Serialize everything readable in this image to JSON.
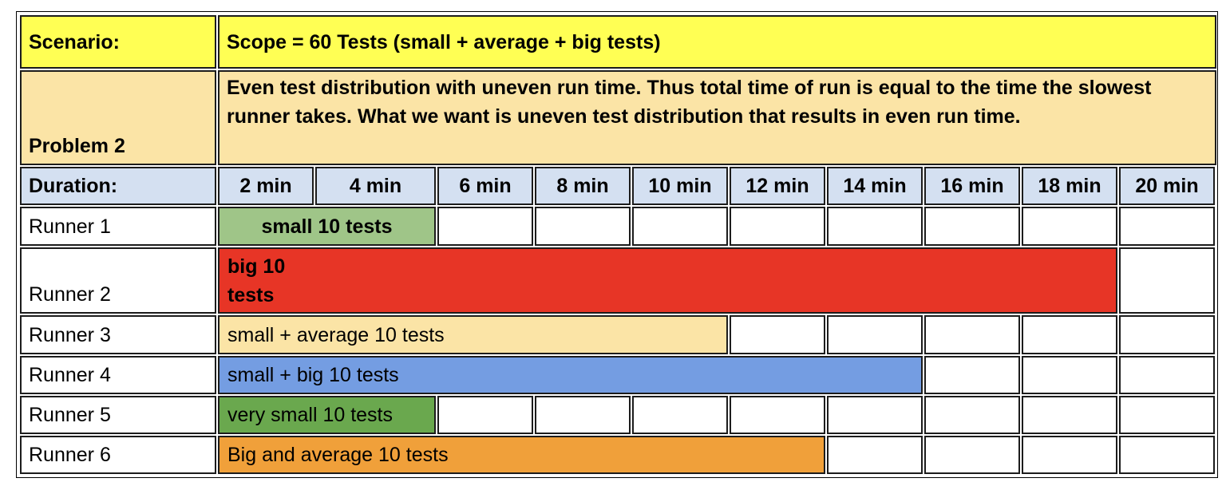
{
  "header": {
    "scenario_label": "Scenario:",
    "scenario_value": "Scope = 60 Tests (small + average + big tests)",
    "problem_label": "Problem 2",
    "problem_text": "Even test distribution with uneven run time. Thus total time of run is equal to the time the slowest runner takes. What we want is uneven test distribution that results in even run time."
  },
  "duration": {
    "label": "Duration:",
    "columns": [
      "2 min",
      "4 min",
      "6 min",
      "8 min",
      "10 min",
      "12 min",
      "14 min",
      "16 min",
      "18 min",
      "20 min"
    ]
  },
  "runners": [
    {
      "label": "Runner 1",
      "bar_text": "small 10 tests",
      "span_columns": 2,
      "bold": true,
      "centered": true,
      "color": "#9fc588"
    },
    {
      "label": "Runner 2",
      "bar_text": "big 10\ntests",
      "span_columns": 9,
      "bold": true,
      "centered": false,
      "color": "#e73526"
    },
    {
      "label": "Runner 3",
      "bar_text": "small + average 10 tests",
      "span_columns": 5,
      "bold": false,
      "centered": false,
      "color": "#fbe4a6"
    },
    {
      "label": "Runner 4",
      "bar_text": "small + big 10 tests",
      "span_columns": 7,
      "bold": false,
      "centered": false,
      "color": "#749de2"
    },
    {
      "label": "Runner 5",
      "bar_text": "very small 10 tests",
      "span_columns": 2,
      "bold": false,
      "centered": false,
      "color": "#6aa84e"
    },
    {
      "label": "Runner 6",
      "bar_text": "Big and average 10 tests",
      "span_columns": 6,
      "bold": false,
      "centered": false,
      "color": "#f0a03a"
    }
  ],
  "colors": {
    "scenario_row": "#ffff54",
    "problem_row": "#fbe4a6",
    "duration_row": "#d4e0f1",
    "empty_cell": "#ffffff"
  }
}
